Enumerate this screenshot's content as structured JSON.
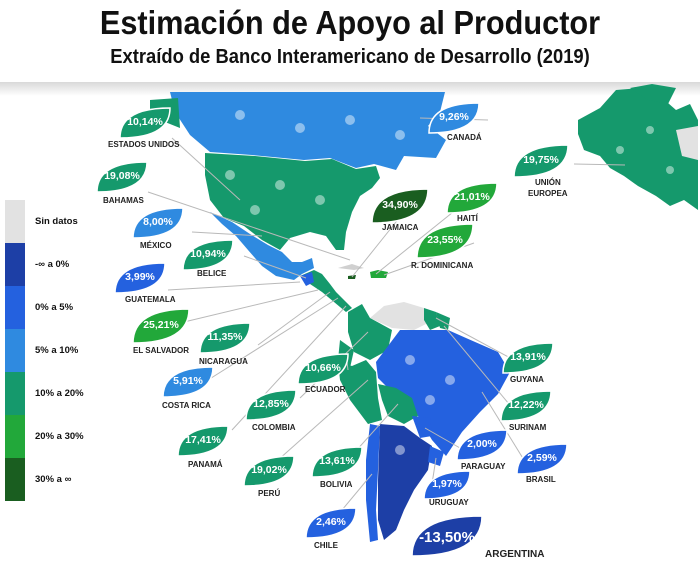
{
  "header": {
    "title": "Estimación de Apoyo al Productor",
    "subtitle": "Extraído de Banco Interamericano de Desarrollo (2019)"
  },
  "legend": [
    {
      "label": "Sin datos",
      "color": "#e2e2e2"
    },
    {
      "label": "-∞  a  0%",
      "color": "#1d3fa6"
    },
    {
      "label": "0%  a  5%",
      "color": "#2461df"
    },
    {
      "label": "5%  a  10%",
      "color": "#2f8ae0"
    },
    {
      "label": "10%  a  20%",
      "color": "#15996c"
    },
    {
      "label": "20%  a  30%",
      "color": "#22a83a"
    },
    {
      "label": "30%  a  ∞",
      "color": "#1a5e20"
    }
  ],
  "countries": [
    {
      "name": "ESTADOS UNIDOS",
      "value": "10,14%",
      "color": "#15996c"
    },
    {
      "name": "CANADÁ",
      "value": "9,26%",
      "color": "#2f8ae0"
    },
    {
      "name": "BAHAMAS",
      "value": "19,08%",
      "color": "#15996c"
    },
    {
      "name": "UNIÓN EUROPEA",
      "value": "19,75%",
      "color": "#15996c"
    },
    {
      "name": "MÉXICO",
      "value": "8,00%",
      "color": "#2f8ae0"
    },
    {
      "name": "JAMAICA",
      "value": "34,90%",
      "color": "#1a5e20"
    },
    {
      "name": "HAITÍ",
      "value": "21,01%",
      "color": "#22a83a"
    },
    {
      "name": "BELICE",
      "value": "10,94%",
      "color": "#15996c"
    },
    {
      "name": "R. DOMINICANA",
      "value": "23,55%",
      "color": "#22a83a"
    },
    {
      "name": "GUATEMALA",
      "value": "3,99%",
      "color": "#2461df"
    },
    {
      "name": "EL SALVADOR",
      "value": "25,21%",
      "color": "#22a83a"
    },
    {
      "name": "NICARAGUA",
      "value": "11,35%",
      "color": "#15996c"
    },
    {
      "name": "ECUADOR",
      "value": "10,66%",
      "color": "#15996c"
    },
    {
      "name": "GUYANA",
      "value": "13,91%",
      "color": "#15996c"
    },
    {
      "name": "COSTA RICA",
      "value": "5,91%",
      "color": "#2f8ae0"
    },
    {
      "name": "COLOMBIA",
      "value": "12,85%",
      "color": "#15996c"
    },
    {
      "name": "SURINAM",
      "value": "12,22%",
      "color": "#15996c"
    },
    {
      "name": "PANAMÁ",
      "value": "17,41%",
      "color": "#15996c"
    },
    {
      "name": "PARAGUAY",
      "value": "2,00%",
      "color": "#2461df"
    },
    {
      "name": "PERÚ",
      "value": "19,02%",
      "color": "#15996c"
    },
    {
      "name": "BOLIVIA",
      "value": "13,61%",
      "color": "#15996c"
    },
    {
      "name": "BRASIL",
      "value": "2,59%",
      "color": "#2461df"
    },
    {
      "name": "URUGUAY",
      "value": "1,97%",
      "color": "#2461df"
    },
    {
      "name": "CHILE",
      "value": "2,46%",
      "color": "#2461df"
    },
    {
      "name": "ARGENTINA",
      "value": "-13,50%",
      "color": "#1d3fa6"
    }
  ]
}
